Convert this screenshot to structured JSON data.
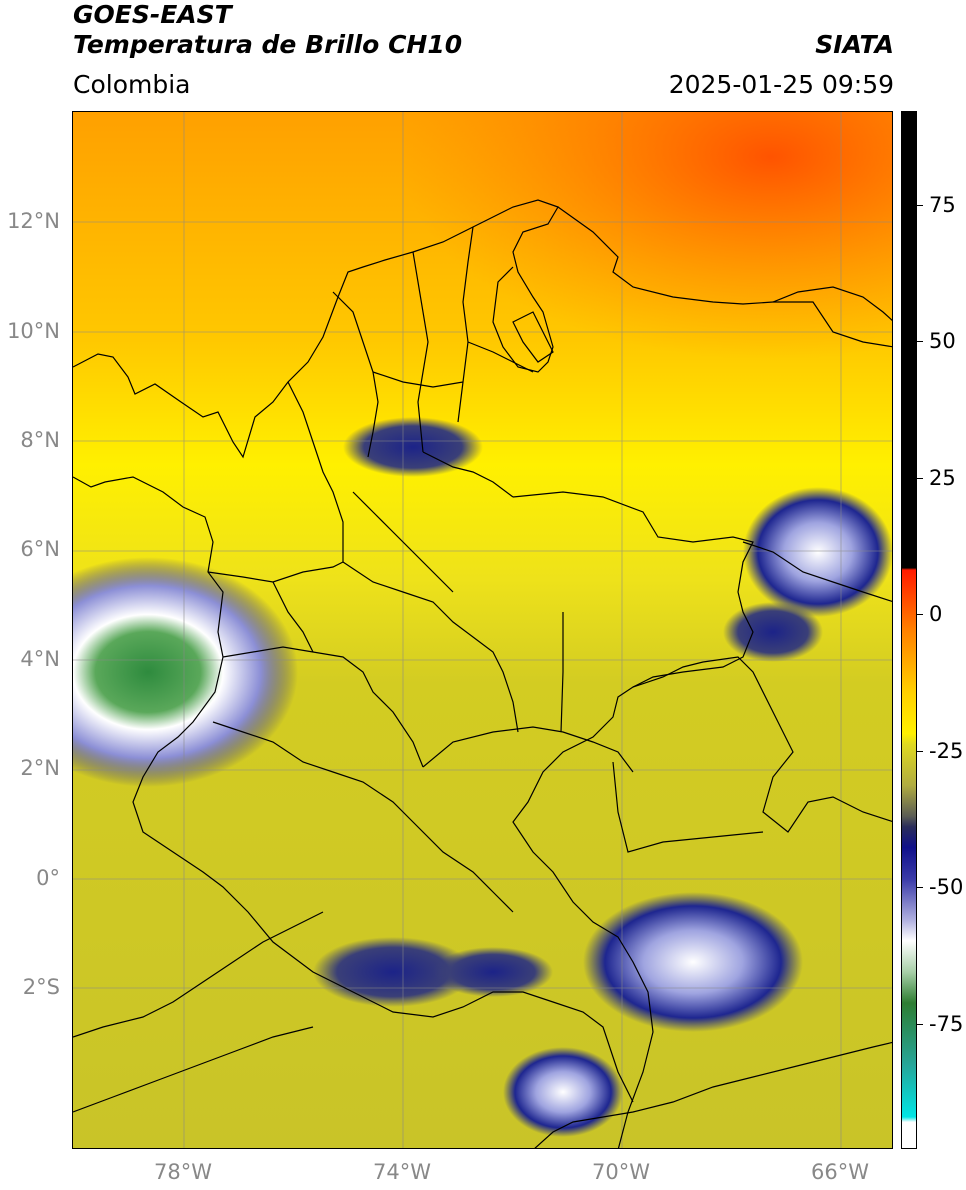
{
  "header": {
    "satellite": "GOES-EAST",
    "product": "Temperatura de Brillo CH10",
    "source": "SIATA",
    "region": "Colombia",
    "datetime": "2025-01-25 09:59"
  },
  "axes": {
    "lat_ticks": [
      "12°N",
      "10°N",
      "8°N",
      "6°N",
      "4°N",
      "2°N",
      "0°",
      "2°S"
    ],
    "lon_ticks": [
      "78°W",
      "74°W",
      "70°W",
      "66°W"
    ]
  },
  "colorbar": {
    "ticks": [
      "75",
      "50",
      "25",
      "0",
      "-25",
      "-50",
      "-75"
    ],
    "colors": {
      "black": "#000000",
      "red": "#ff2a00",
      "orange": "#ff9a00",
      "yellow": "#ffee00",
      "olive": "#c8c426",
      "dark": "#2b2f60",
      "navy": "#1a1a8a",
      "white": "#ffffff",
      "green": "#2e7d32",
      "teal": "#22b3a0",
      "cyan": "#00e5e5"
    }
  },
  "map": {
    "background_colors": {
      "warm_top": "#ff8c00",
      "mid": "#ffd000",
      "land": "#cfc923",
      "cloud_blue": "#1f2a8f",
      "cloud_white": "#eeeeff",
      "cloud_green": "#3c8f3c"
    }
  }
}
